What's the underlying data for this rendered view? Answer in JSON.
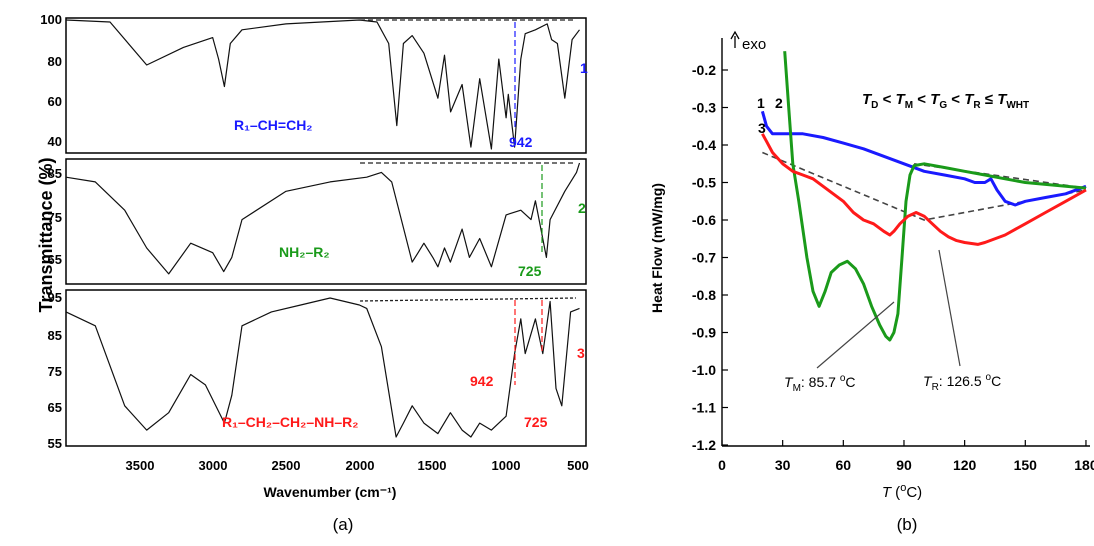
{
  "panel_a": {
    "label": "(a)",
    "ylabel": "Transmittance (%)",
    "xlabel": "Wavenumber (cm⁻¹)",
    "xticks": [
      "3500",
      "3000",
      "2500",
      "2000",
      "1500",
      "1000",
      "500"
    ],
    "subplots": [
      {
        "id": "1",
        "compound": "R₁–CH=CH₂",
        "color": "#1a1aff",
        "yticks": [
          "100",
          "80",
          "60",
          "40"
        ],
        "annotations": [
          "942"
        ]
      },
      {
        "id": "2",
        "compound": "NH₂–R₂",
        "color": "#1a9a1a",
        "yticks": [
          "85",
          "75",
          "65"
        ],
        "annotations": [
          "725"
        ]
      },
      {
        "id": "3",
        "compound": "R₁–CH₂–CH₂–NH–R₂",
        "color": "#ff1a1a",
        "yticks": [
          "95",
          "85",
          "75",
          "65",
          "55"
        ],
        "annotations": [
          "942",
          "725"
        ]
      }
    ]
  },
  "panel_b": {
    "label": "(b)",
    "exo_label": "exo",
    "ylabel": "Heat Flow (mW/mg)",
    "xlabel": "T (°C)",
    "relation": "TD < TM < TG < TR ≤ TWHT",
    "xticks": [
      "0",
      "30",
      "60",
      "90",
      "120",
      "150",
      "180"
    ],
    "yticks": [
      "-0.2",
      "-0.3",
      "-0.4",
      "-0.5",
      "-0.6",
      "-0.7",
      "-0.8",
      "-0.9",
      "-1.0",
      "-1.1",
      "-1.2"
    ],
    "curve_labels": [
      "1",
      "2",
      "3"
    ],
    "annotations": [
      "TM: 85.7 °C",
      "TR: 126.5 °C"
    ]
  },
  "chart_data": [
    {
      "type": "line",
      "title": "",
      "xlabel": "Wavenumber (cm⁻¹)",
      "ylabel": "Transmittance (%)",
      "xlim": [
        4000,
        450
      ],
      "series": [
        {
          "name": "1",
          "ylim": [
            33,
            100
          ],
          "x": [
            4000,
            3700,
            3450,
            3200,
            3000,
            2960,
            2920,
            2880,
            2800,
            2500,
            2000,
            1880,
            1800,
            1745,
            1700,
            1640,
            1560,
            1465,
            1420,
            1378,
            1300,
            1240,
            1180,
            1100,
            1050,
            1000,
            985,
            942,
            900,
            870,
            800,
            720,
            690,
            650,
            600,
            550,
            500
          ],
          "y": [
            100,
            99,
            77,
            86,
            91,
            80,
            66,
            88,
            95,
            98,
            100,
            99,
            88,
            46,
            88,
            92,
            83,
            60,
            82,
            53,
            67,
            35,
            70,
            34,
            80,
            50,
            62,
            35,
            80,
            93,
            95,
            98,
            90,
            88,
            60,
            90,
            95
          ]
        },
        {
          "name": "2",
          "ylim": [
            61,
            86
          ],
          "x": [
            4000,
            3800,
            3600,
            3450,
            3300,
            3150,
            3000,
            2925,
            2870,
            2800,
            2500,
            2200,
            1950,
            1850,
            1780,
            1640,
            1600,
            1560,
            1500,
            1465,
            1420,
            1380,
            1300,
            1250,
            1180,
            1100,
            1000,
            900,
            830,
            800,
            725,
            700,
            600,
            520,
            500
          ],
          "y": [
            83,
            82,
            76,
            68,
            62.5,
            69,
            67,
            63,
            66,
            74,
            80,
            82,
            83,
            84,
            82,
            65,
            67,
            69,
            66,
            64,
            68,
            65,
            72,
            66,
            70,
            64,
            75,
            76,
            74,
            78,
            66,
            74,
            80,
            84,
            86
          ]
        },
        {
          "name": "3",
          "ylim": [
            54,
            96
          ],
          "x": [
            4000,
            3800,
            3600,
            3450,
            3300,
            3150,
            3050,
            2920,
            2870,
            2800,
            2600,
            2400,
            2200,
            2000,
            1950,
            1850,
            1750,
            1700,
            1640,
            1560,
            1465,
            1380,
            1300,
            1240,
            1180,
            1100,
            1000,
            942,
            900,
            870,
            800,
            750,
            700,
            660,
            620,
            560,
            500
          ],
          "y": [
            92,
            88,
            65,
            58,
            63,
            74,
            71,
            60,
            68,
            88,
            92,
            94,
            96,
            94,
            93,
            82,
            56,
            60,
            65,
            60,
            57,
            63,
            58,
            56,
            60,
            58,
            62,
            80,
            90,
            80,
            90,
            80,
            95,
            70,
            65,
            92,
            93
          ]
        }
      ]
    },
    {
      "type": "line",
      "title": "",
      "xlabel": "T (°C)",
      "ylabel": "Heat Flow (mW/mg)",
      "xlim": [
        0,
        180
      ],
      "ylim": [
        -1.2,
        -0.1
      ],
      "series": [
        {
          "name": "1",
          "color": "#1a1aff",
          "x": [
            20,
            22,
            25,
            30,
            40,
            50,
            60,
            70,
            80,
            90,
            100,
            110,
            120,
            125,
            130,
            133,
            136,
            140,
            145,
            150,
            160,
            170,
            180
          ],
          "y": [
            -0.31,
            -0.35,
            -0.37,
            -0.37,
            -0.37,
            -0.38,
            -0.395,
            -0.41,
            -0.43,
            -0.45,
            -0.47,
            -0.48,
            -0.49,
            -0.5,
            -0.5,
            -0.49,
            -0.52,
            -0.55,
            -0.56,
            -0.55,
            -0.54,
            -0.53,
            -0.51
          ]
        },
        {
          "name": "2",
          "color": "#1a9a1a",
          "x": [
            31,
            33,
            35,
            38,
            42,
            45,
            48,
            51,
            54,
            58,
            62,
            66,
            70,
            74,
            78,
            81,
            83,
            85,
            87,
            89,
            91,
            93,
            95,
            100,
            110,
            120,
            130,
            140,
            150,
            160,
            170,
            180
          ],
          "y": [
            -0.15,
            -0.3,
            -0.45,
            -0.55,
            -0.7,
            -0.79,
            -0.83,
            -0.79,
            -0.74,
            -0.72,
            -0.71,
            -0.73,
            -0.77,
            -0.83,
            -0.88,
            -0.91,
            -0.92,
            -0.9,
            -0.85,
            -0.7,
            -0.55,
            -0.48,
            -0.455,
            -0.45,
            -0.46,
            -0.47,
            -0.48,
            -0.49,
            -0.5,
            -0.505,
            -0.51,
            -0.515
          ]
        },
        {
          "name": "3",
          "color": "#ff1a1a",
          "x": [
            20,
            22,
            25,
            30,
            35,
            40,
            45,
            50,
            55,
            60,
            65,
            70,
            75,
            80,
            83,
            85,
            88,
            92,
            96,
            100,
            104,
            108,
            112,
            116,
            120,
            126.5,
            130,
            140,
            150,
            160,
            170,
            180
          ],
          "y": [
            -0.37,
            -0.39,
            -0.42,
            -0.45,
            -0.47,
            -0.48,
            -0.49,
            -0.51,
            -0.53,
            -0.55,
            -0.58,
            -0.6,
            -0.61,
            -0.63,
            -0.64,
            -0.63,
            -0.61,
            -0.59,
            -0.58,
            -0.59,
            -0.61,
            -0.63,
            -0.645,
            -0.655,
            -0.66,
            -0.665,
            -0.66,
            -0.64,
            -0.61,
            -0.58,
            -0.55,
            -0.52
          ]
        }
      ],
      "baselines": [
        {
          "x": [
            20,
            100,
            180
          ],
          "y": [
            -0.42,
            -0.6,
            -0.52
          ]
        },
        {
          "x": [
            95,
            180
          ],
          "y": [
            -0.45,
            -0.515
          ]
        }
      ],
      "markers": [
        {
          "name": "TM",
          "x": 85.7
        },
        {
          "name": "TR",
          "x": 126.5
        }
      ]
    }
  ]
}
